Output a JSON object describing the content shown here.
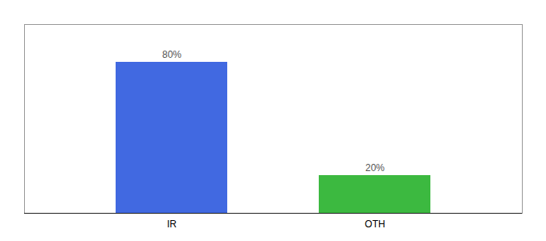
{
  "chart_data": {
    "type": "bar",
    "categories": [
      "IR",
      "OTH"
    ],
    "values": [
      80,
      20
    ],
    "value_labels": [
      "80%",
      "20%"
    ],
    "colors": [
      "#4169E1",
      "#3CB940"
    ],
    "ylim": [
      0,
      100
    ],
    "data_labels": true,
    "tick_labels": "x"
  }
}
